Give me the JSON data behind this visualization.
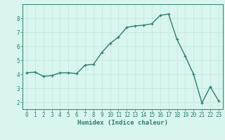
{
  "x": [
    0,
    1,
    2,
    3,
    4,
    5,
    6,
    7,
    8,
    9,
    10,
    11,
    12,
    13,
    14,
    15,
    16,
    17,
    18,
    19,
    20,
    21,
    22,
    23
  ],
  "y": [
    4.1,
    4.15,
    3.85,
    3.9,
    4.1,
    4.1,
    4.05,
    4.65,
    4.7,
    5.55,
    6.2,
    6.65,
    7.35,
    7.45,
    7.5,
    7.6,
    8.2,
    8.3,
    6.5,
    5.3,
    4.0,
    1.95,
    3.1,
    2.1
  ],
  "line_color": "#2e7d6e",
  "marker": "+",
  "markersize": 3.5,
  "linewidth": 1.0,
  "bg_color": "#d8f5f0",
  "grid_color": "#c8e8e2",
  "axis_color": "#2e7d6e",
  "xlabel": "Humidex (Indice chaleur)",
  "xlabel_fontsize": 6.5,
  "ylim": [
    1.5,
    9.0
  ],
  "xlim": [
    -0.5,
    23.5
  ],
  "yticks": [
    2,
    3,
    4,
    5,
    6,
    7,
    8
  ],
  "xticks": [
    0,
    1,
    2,
    3,
    4,
    5,
    6,
    7,
    8,
    9,
    10,
    11,
    12,
    13,
    14,
    15,
    16,
    17,
    18,
    19,
    20,
    21,
    22,
    23
  ],
  "tick_fontsize": 5.5,
  "spine_color": "#2e7d6e"
}
